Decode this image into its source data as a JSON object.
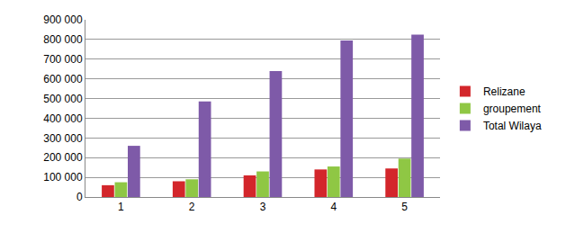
{
  "chart_data": {
    "type": "bar",
    "categories": [
      "1",
      "2",
      "3",
      "4",
      "5"
    ],
    "series": [
      {
        "name": "Relizane",
        "color": "#d3262b",
        "values": [
          60000,
          80000,
          110000,
          140000,
          145000
        ]
      },
      {
        "name": "groupement",
        "color": "#8fc744",
        "values": [
          75000,
          90000,
          130000,
          155000,
          195000
        ]
      },
      {
        "name": "Total Wilaya",
        "color": "#7e5aa8",
        "values": [
          260000,
          485000,
          640000,
          795000,
          825000
        ]
      }
    ],
    "ylim": [
      0,
      900000
    ],
    "yticks": [
      0,
      {
        "value": 100000,
        "label": "100 000"
      },
      {
        "value": 200000,
        "label": "200 000"
      },
      {
        "value": 300000,
        "label": "300 000"
      },
      {
        "value": 400000,
        "label": "400 000"
      },
      {
        "value": 500000,
        "label": "500 000"
      },
      {
        "value": 600000,
        "label": "600 000"
      },
      {
        "value": 700000,
        "label": "700 000"
      },
      {
        "value": 800000,
        "label": "800 000"
      },
      {
        "value": 900000,
        "label": "900 000"
      }
    ],
    "grid": true,
    "legend": "right"
  }
}
